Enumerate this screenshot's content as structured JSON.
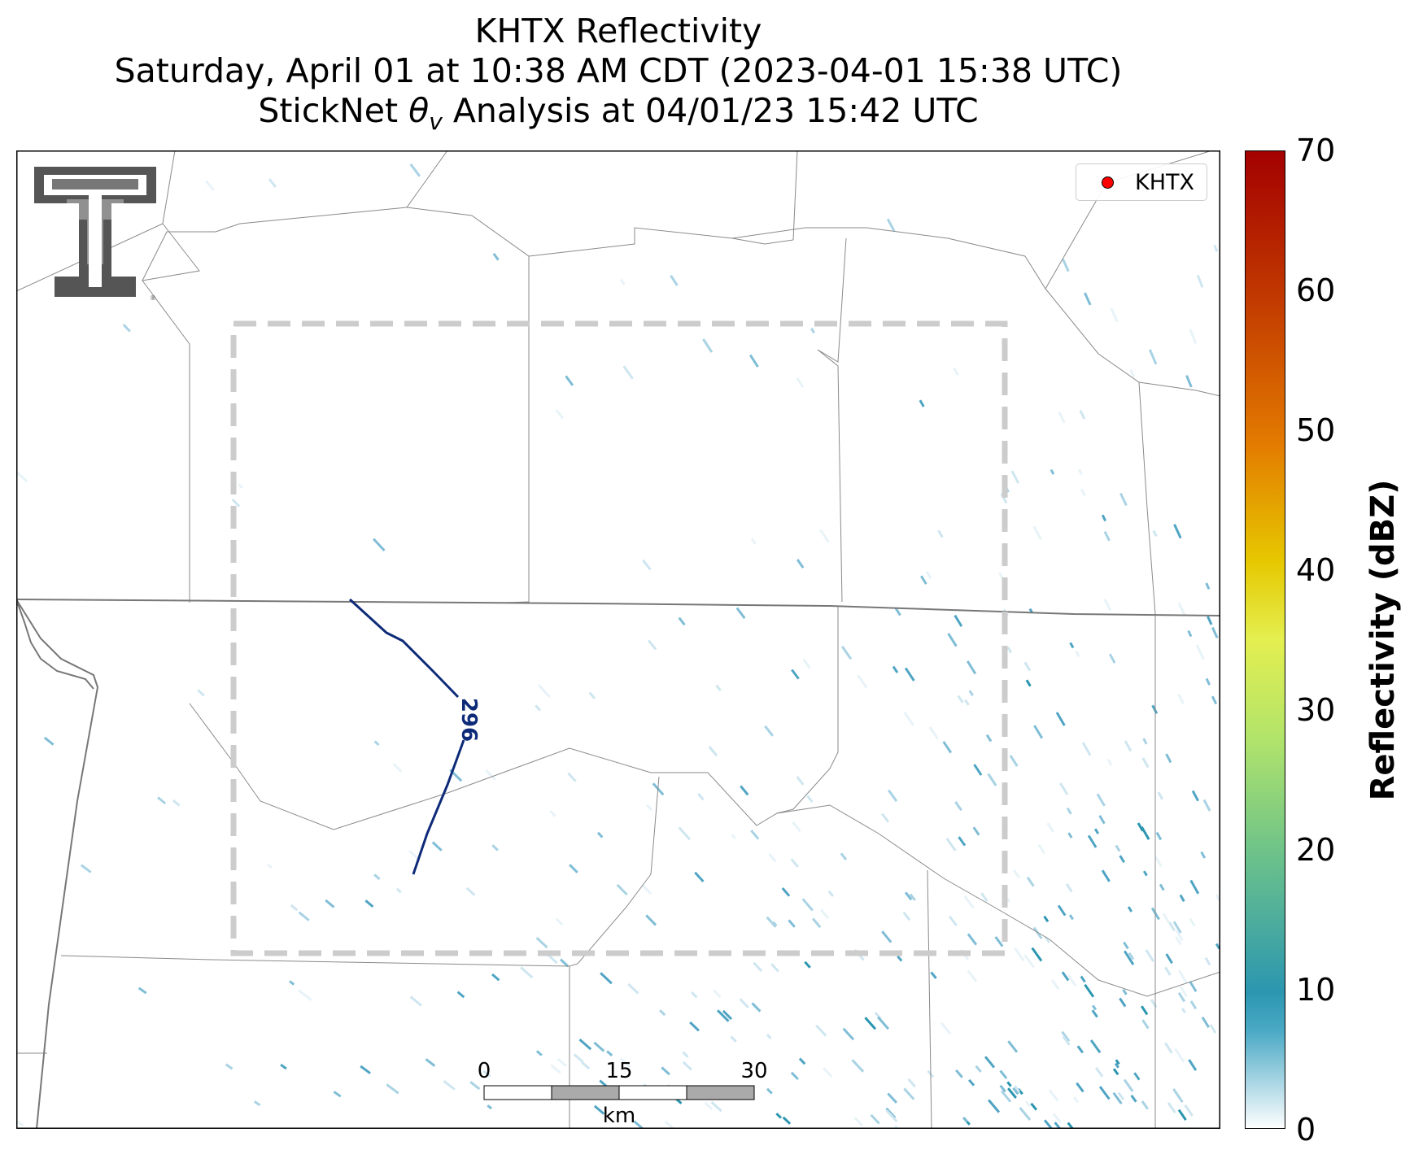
{
  "title": {
    "line1": "KHTX Reflectivity",
    "line2": "Saturday, April 01 at 10:38 AM CDT (2023-04-01 15:38 UTC)",
    "line3_prefix": "StickNet ",
    "line3_symbol": "θ",
    "line3_subscript": "v",
    "line3_suffix": " Analysis at 04/01/23 15:42 UTC"
  },
  "legend": {
    "label": "KHTX",
    "marker_color": "#ff0000"
  },
  "contour": {
    "label": "296",
    "color": "#0d2a78"
  },
  "colorbar": {
    "label": "Reflectivity (dBZ)",
    "ticks": [
      "70",
      "60",
      "50",
      "40",
      "30",
      "20",
      "10",
      "0"
    ],
    "min": 0,
    "max": 70,
    "colors": [
      "#ffffff",
      "#2b96b0",
      "#6cc28a",
      "#d4ef59",
      "#e6c800",
      "#e37b00",
      "#c33d00",
      "#a30000"
    ]
  },
  "scalebar": {
    "ticks": [
      "0",
      "15",
      "30"
    ],
    "unit": "km"
  },
  "logo": {
    "name": "Texas Tech double-T logo"
  }
}
